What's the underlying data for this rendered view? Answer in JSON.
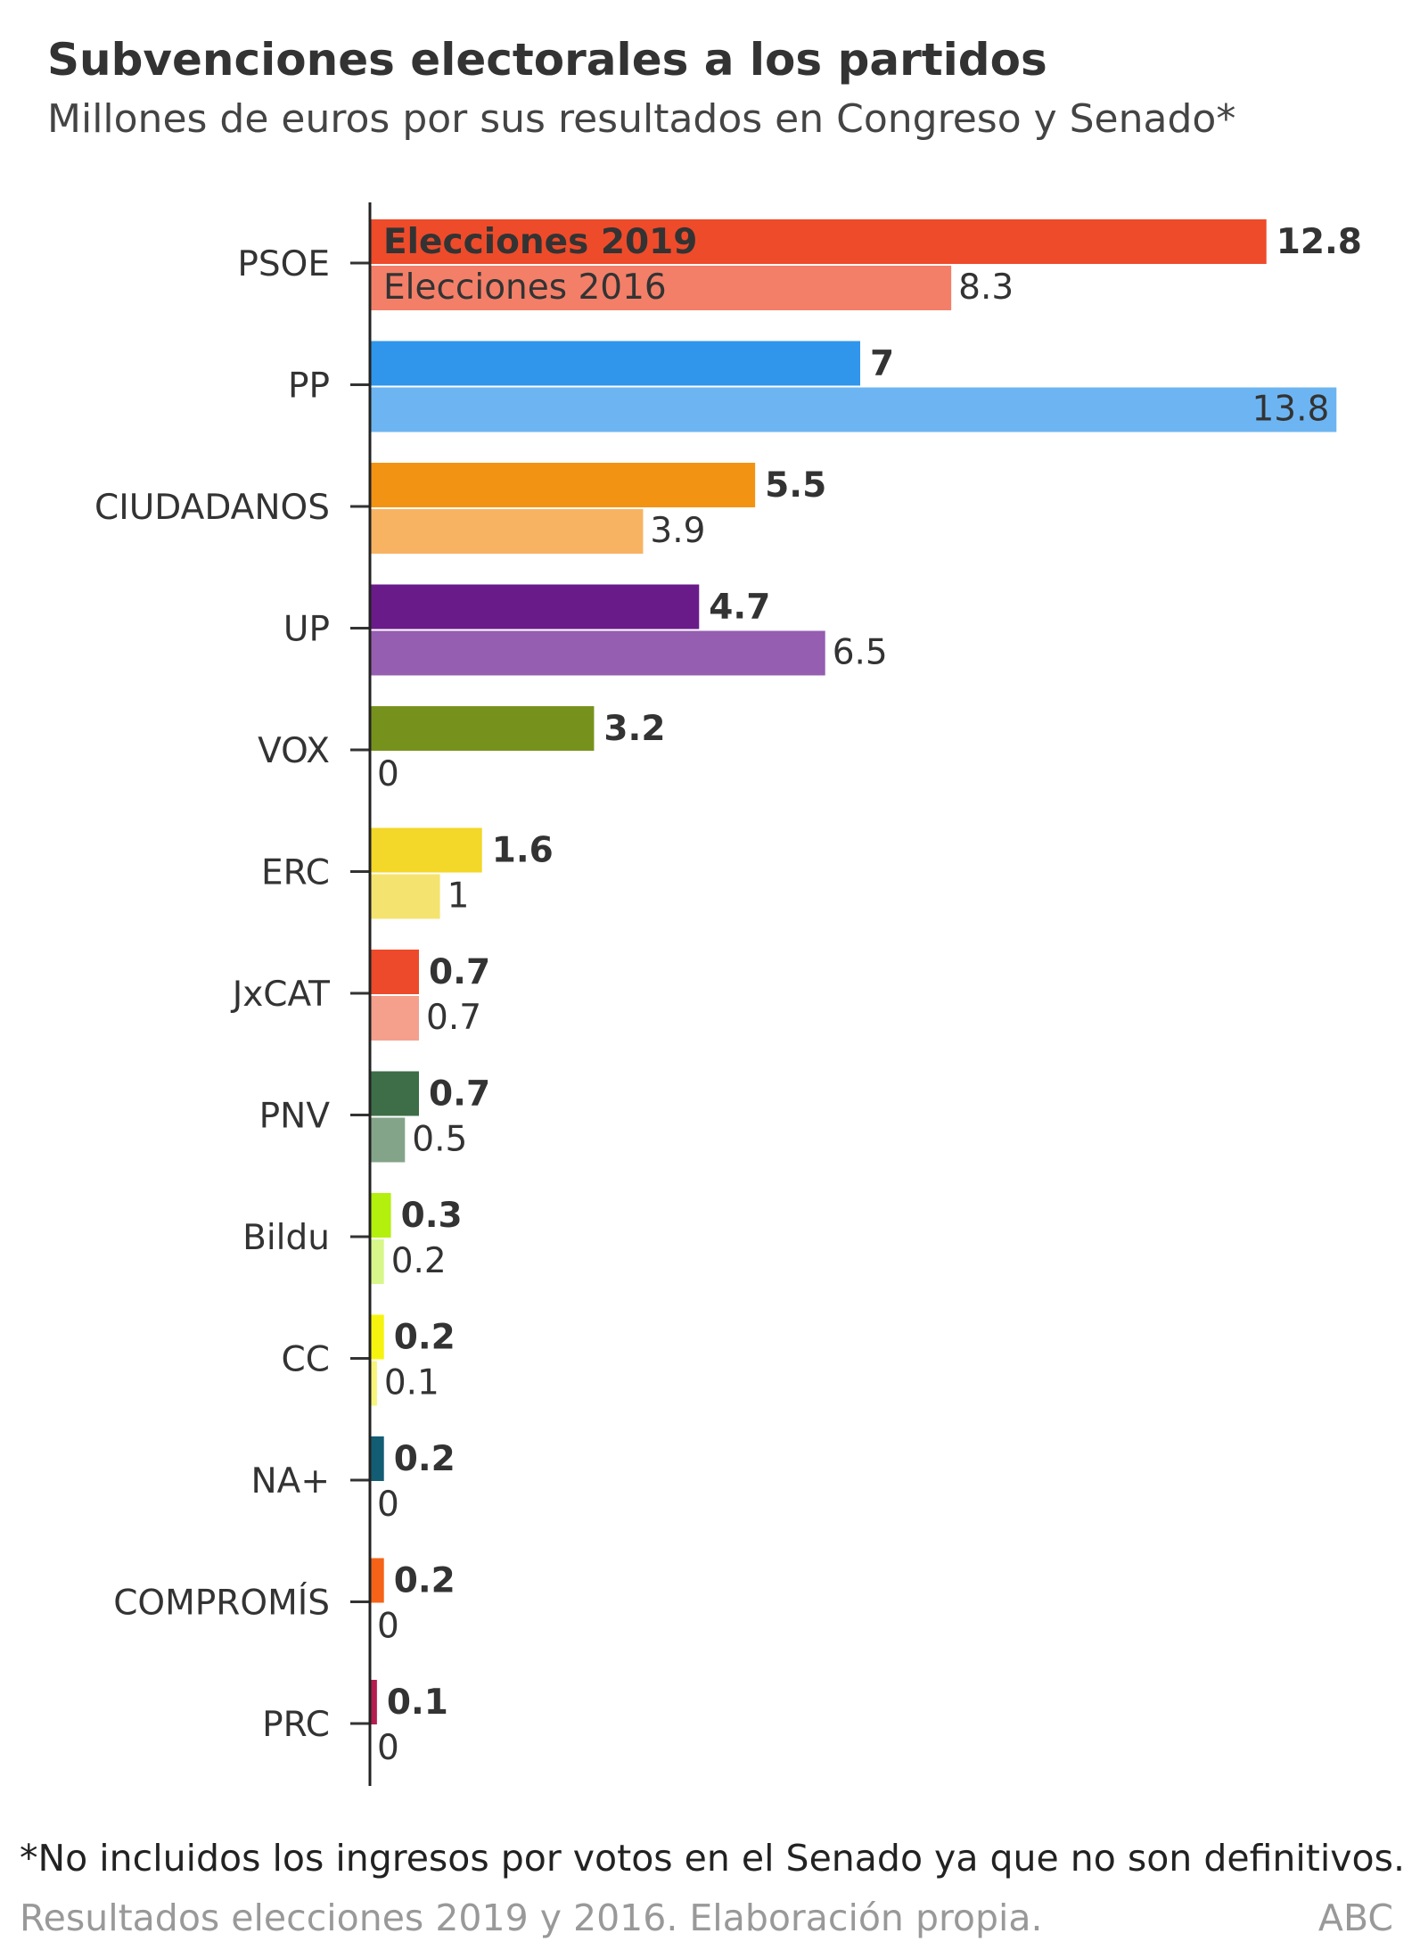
{
  "header": {
    "title": "Subvenciones electorales a los partidos",
    "subtitle": "Millones de euros por sus resultados en Congreso y Senado*"
  },
  "footer": {
    "note": "*No incluidos los ingresos por votos en el Senado ya que no son definitivos.",
    "source": "Resultados elecciones 2019 y 2016. Elaboración propia.",
    "brand": "ABC"
  },
  "chart_data": {
    "type": "bar",
    "orientation": "horizontal",
    "title": "Subvenciones electorales a los partidos",
    "subtitle": "Millones de euros por sus resultados en Congreso y Senado*",
    "categories": [
      "PSOE",
      "PP",
      "CIUDADANOS",
      "UP",
      "VOX",
      "ERC",
      "JxCAT",
      "PNV",
      "Bildu",
      "CC",
      "NA+",
      "COMPROMÍS",
      "PRC"
    ],
    "series": [
      {
        "name": "Elecciones 2019",
        "values": [
          12.8,
          7,
          5.5,
          4.7,
          3.2,
          1.6,
          0.7,
          0.7,
          0.3,
          0.2,
          0.2,
          0.2,
          0.1
        ],
        "labels": [
          "12.8",
          "7",
          "5.5",
          "4.7",
          "3.2",
          "1.6",
          "0.7",
          "0.7",
          "0.3",
          "0.2",
          "0.2",
          "0.2",
          "0.1"
        ],
        "colors": [
          "#ee4b2b",
          "#2f96eb",
          "#f39314",
          "#6a1b8a",
          "#76921c",
          "#f3d729",
          "#ec4a2a",
          "#3d6e48",
          "#b3f00d",
          "#f6f30f",
          "#125d73",
          "#f46318",
          "#b41d51"
        ]
      },
      {
        "name": "Elecciones 2016",
        "values": [
          8.3,
          13.8,
          3.9,
          6.5,
          0,
          1,
          0.7,
          0.5,
          0.2,
          0.1,
          0,
          0,
          0
        ],
        "labels": [
          "8.3",
          "13.8",
          "3.9",
          "6.5",
          "0",
          "1",
          "0.7",
          "0.5",
          "0.2",
          "0.1",
          "0",
          "0",
          "0"
        ],
        "colors": [
          "#f37f69",
          "#6db5f2",
          "#f8b362",
          "#955eb0",
          "#a6bc60",
          "#f5e36f",
          "#f4a08d",
          "#84a48a",
          "#d7f78a",
          "#f8f57a",
          "#6a99a8",
          "#f7a27a",
          "#d77a99"
        ]
      }
    ],
    "xlim": [
      0,
      14
    ],
    "grid": false,
    "legend": "inside-first-bar"
  }
}
